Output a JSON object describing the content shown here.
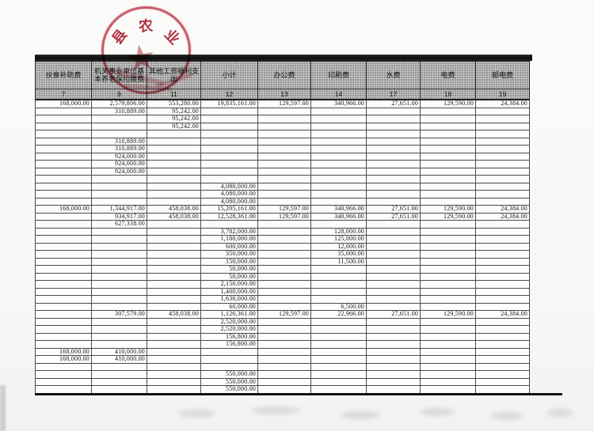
{
  "document": {
    "stamp": {
      "char1": "县",
      "char2": "农",
      "char3": "业",
      "star": "★",
      "color": "#b72032"
    },
    "table": {
      "columns": [
        {
          "label": "伙食补助费",
          "num": "7"
        },
        {
          "label": "机关事业单位基本养老保险缴费",
          "num": "9"
        },
        {
          "label": "其他工资福利支出",
          "num": "11"
        },
        {
          "label": "小计",
          "num": "12"
        },
        {
          "label": "办公费",
          "num": "13"
        },
        {
          "label": "印刷费",
          "num": "14"
        },
        {
          "label": "水费",
          "num": "17"
        },
        {
          "label": "电费",
          "num": "18"
        },
        {
          "label": "邮电费",
          "num": "19"
        }
      ],
      "rows": [
        [
          "168,000.00",
          "2,579,806.00",
          "553,280.00",
          "19,835,161.00",
          "129,597.00",
          "340,966.00",
          "27,651.00",
          "129,590.00",
          "24,384.00"
        ],
        [
          "",
          "310,889.00",
          "95,242.00",
          "",
          "",
          "",
          "",
          "",
          ""
        ],
        [
          "",
          "",
          "95,242.00",
          "",
          "",
          "",
          "",
          "",
          ""
        ],
        [
          "",
          "",
          "95,242.00",
          "",
          "",
          "",
          "",
          "",
          ""
        ],
        [
          "",
          "",
          "",
          "",
          "",
          "",
          "",
          "",
          ""
        ],
        [
          "",
          "310,889.00",
          "",
          "",
          "",
          "",
          "",
          "",
          ""
        ],
        [
          "",
          "310,889.00",
          "",
          "",
          "",
          "",
          "",
          "",
          ""
        ],
        [
          "",
          "924,000.00",
          "",
          "",
          "",
          "",
          "",
          "",
          ""
        ],
        [
          "",
          "924,000.00",
          "",
          "",
          "",
          "",
          "",
          "",
          ""
        ],
        [
          "",
          "924,000.00",
          "",
          "",
          "",
          "",
          "",
          "",
          ""
        ],
        [
          "",
          "",
          "",
          "",
          "",
          "",
          "",
          "",
          ""
        ],
        [
          "",
          "",
          "",
          "4,080,000.00",
          "",
          "",
          "",
          "",
          ""
        ],
        [
          "",
          "",
          "",
          "4,080,000.00",
          "",
          "",
          "",
          "",
          ""
        ],
        [
          "",
          "",
          "",
          "4,080,000.00",
          "",
          "",
          "",
          "",
          ""
        ],
        [
          "168,000.00",
          "1,344,917.00",
          "458,038.00",
          "15,205,161.00",
          "129,597.00",
          "340,966.00",
          "27,651.00",
          "129,590.00",
          "24,384.00"
        ],
        [
          "",
          "934,917.00",
          "458,038.00",
          "12,528,361.00",
          "129,597.00",
          "340,966.00",
          "27,651.00",
          "129,590.00",
          "24,384.00"
        ],
        [
          "",
          "627,338.00",
          "",
          "",
          "",
          "",
          "",
          "",
          ""
        ],
        [
          "",
          "",
          "",
          "3,782,000.00",
          "",
          "128,000.00",
          "",
          "",
          ""
        ],
        [
          "",
          "",
          "",
          "1,180,000.00",
          "",
          "125,000.00",
          "",
          "",
          ""
        ],
        [
          "",
          "",
          "",
          "600,000.00",
          "",
          "12,000.00",
          "",
          "",
          ""
        ],
        [
          "",
          "",
          "",
          "350,000.00",
          "",
          "35,000.00",
          "",
          "",
          ""
        ],
        [
          "",
          "",
          "",
          "150,000.00",
          "",
          "11,500.00",
          "",
          "",
          ""
        ],
        [
          "",
          "",
          "",
          "50,000.00",
          "",
          "",
          "",
          "",
          ""
        ],
        [
          "",
          "",
          "",
          "50,000.00",
          "",
          "",
          "",
          "",
          ""
        ],
        [
          "",
          "",
          "",
          "2,150,000.00",
          "",
          "",
          "",
          "",
          ""
        ],
        [
          "",
          "",
          "",
          "1,400,000.00",
          "",
          "",
          "",
          "",
          ""
        ],
        [
          "",
          "",
          "",
          "1,630,000.00",
          "",
          "",
          "",
          "",
          ""
        ],
        [
          "",
          "",
          "",
          "60,000.00",
          "",
          "6,500.00",
          "",
          "",
          ""
        ],
        [
          "",
          "307,579.00",
          "458,038.00",
          "1,126,361.00",
          "129,597.00",
          "22,966.00",
          "27,651.00",
          "129,590.00",
          "24,384.00"
        ],
        [
          "",
          "",
          "",
          "2,520,000.00",
          "",
          "",
          "",
          "",
          ""
        ],
        [
          "",
          "",
          "",
          "2,520,000.00",
          "",
          "",
          "",
          "",
          ""
        ],
        [
          "",
          "",
          "",
          "156,800.00",
          "",
          "",
          "",
          "",
          ""
        ],
        [
          "",
          "",
          "",
          "156,800.00",
          "",
          "",
          "",
          "",
          ""
        ],
        [
          "168,000.00",
          "410,000.00",
          "",
          "",
          "",
          "",
          "",
          "",
          ""
        ],
        [
          "168,000.00",
          "410,000.00",
          "",
          "",
          "",
          "",
          "",
          "",
          ""
        ],
        [
          "",
          "",
          "",
          "",
          "",
          "",
          "",
          "",
          ""
        ],
        [
          "",
          "",
          "",
          "550,000.00",
          "",
          "",
          "",
          "",
          ""
        ],
        [
          "",
          "",
          "",
          "550,000.00",
          "",
          "",
          "",
          "",
          ""
        ],
        [
          "",
          "",
          "",
          "550,000.00",
          "",
          "",
          "",
          "",
          ""
        ]
      ]
    }
  }
}
